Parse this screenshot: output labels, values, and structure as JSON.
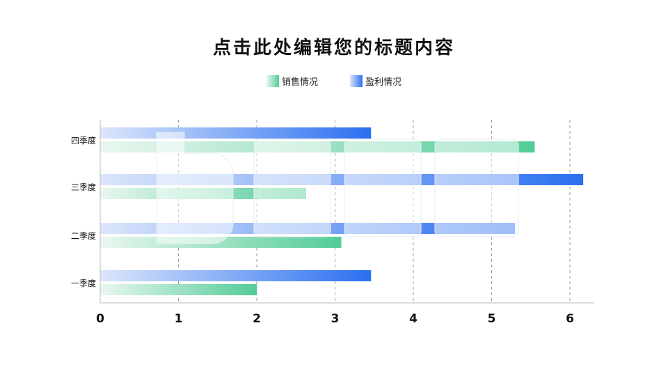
{
  "colors": {
    "sales": "#52cc97",
    "profit": "#2a6ff0",
    "axis": "#bbbbbb",
    "grid": "#9a9a9a"
  },
  "chart_data": {
    "type": "bar",
    "orientation": "horizontal",
    "title": "点击此处编辑您的标题内容",
    "legend_position": "top",
    "categories": [
      "一季度",
      "二季度",
      "三季度",
      "四季度"
    ],
    "series": [
      {
        "name": "销售情况",
        "values": [
          2.0,
          3.08,
          2.63,
          5.55
        ]
      },
      {
        "name": "盈利情况",
        "values": [
          3.46,
          5.3,
          6.17,
          3.46
        ]
      }
    ],
    "xticks": [
      "0",
      "1",
      "2",
      "3",
      "4",
      "5",
      "6"
    ],
    "xlim": [
      0,
      6.3
    ],
    "grid": "vertical dashed"
  }
}
